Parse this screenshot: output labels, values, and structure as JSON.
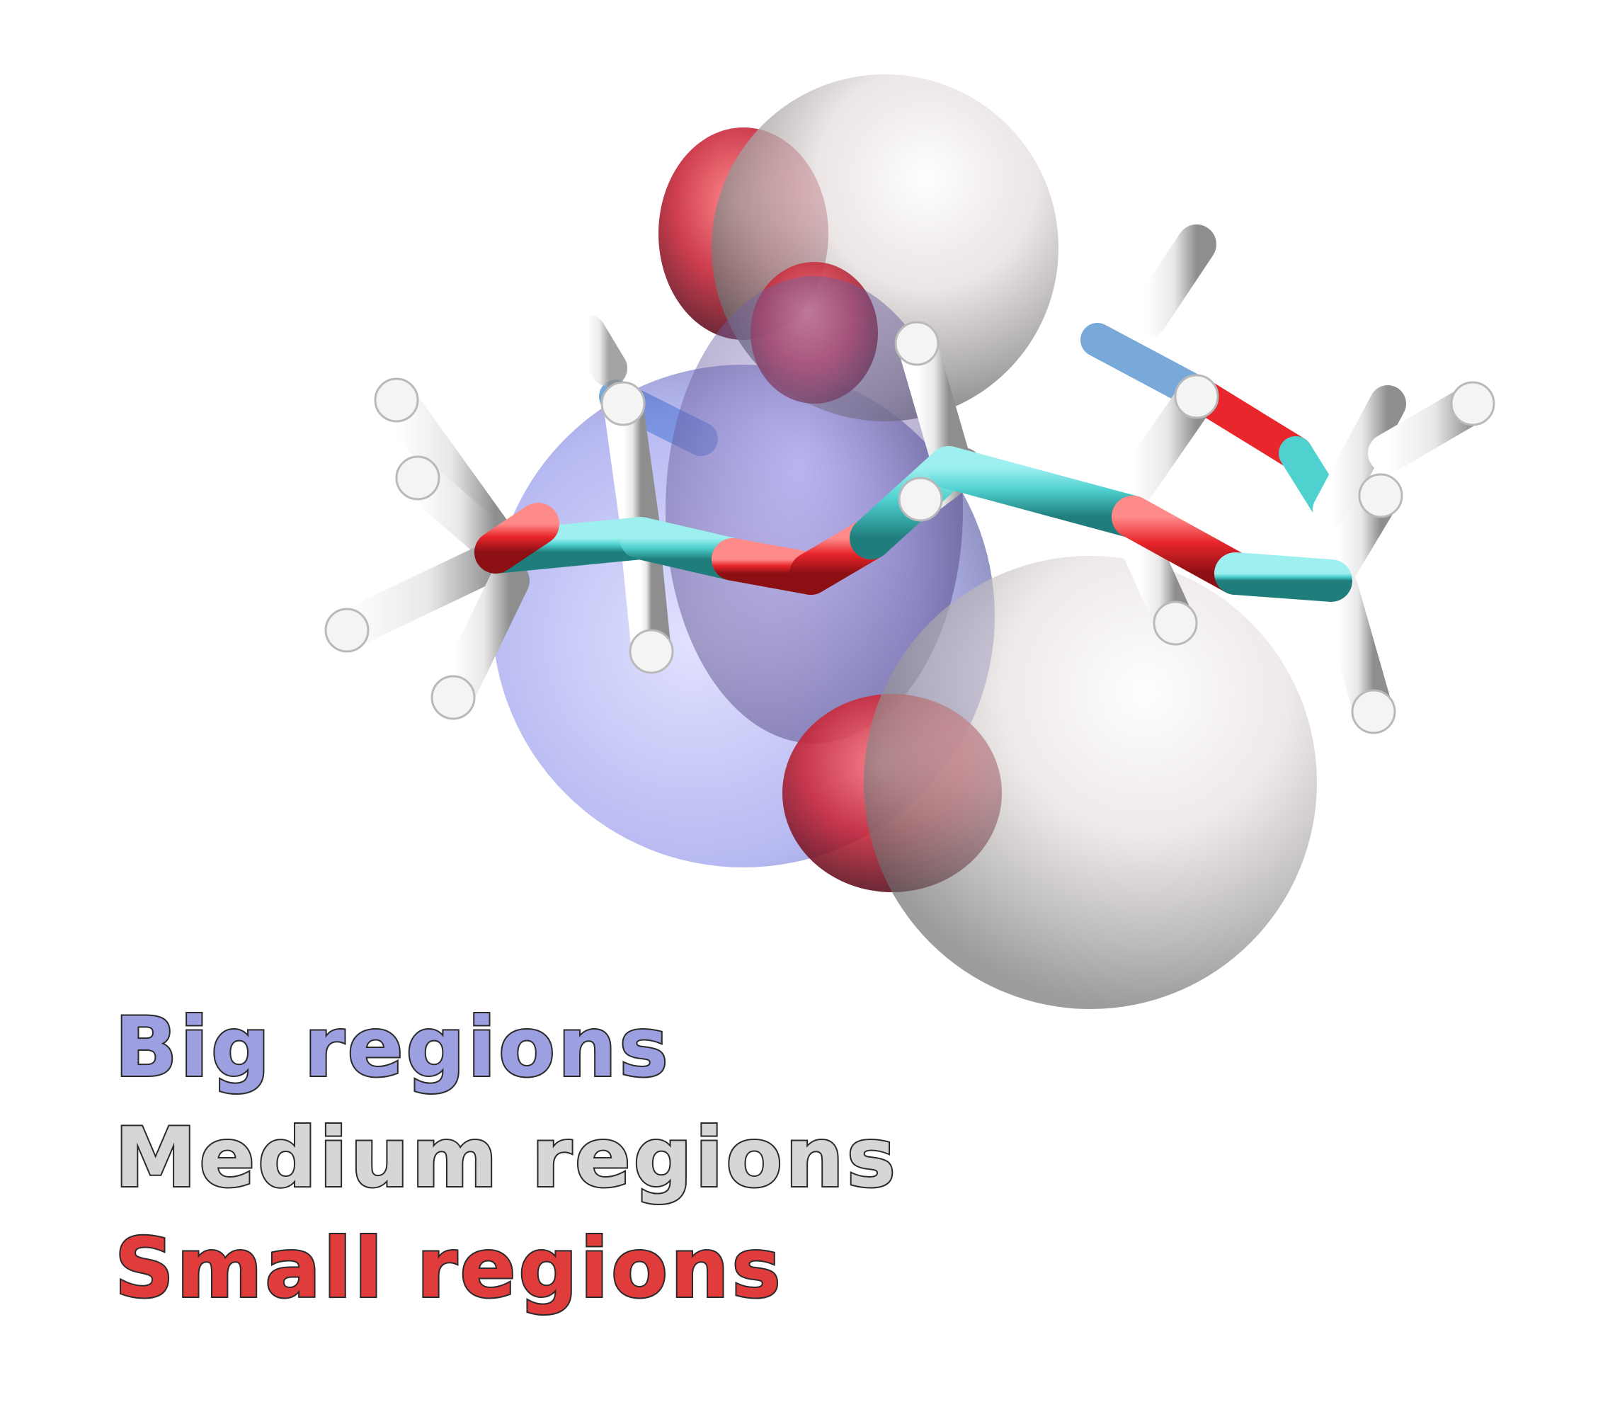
{
  "legend": {
    "items": [
      {
        "label": "Big regions",
        "color": "#9c9fe0"
      },
      {
        "label": "Medium regions",
        "color": "#d6d6d6"
      },
      {
        "label": "Small regions",
        "color": "#e03c3c"
      }
    ]
  },
  "colors": {
    "carbon": "#4fd1d0",
    "oxygen": "#e8262b",
    "hydrogen": "#f2f2f2",
    "big_region": "#8c8ff0",
    "medium_region": "#d9d9d9",
    "small_region": "#e0303a"
  }
}
